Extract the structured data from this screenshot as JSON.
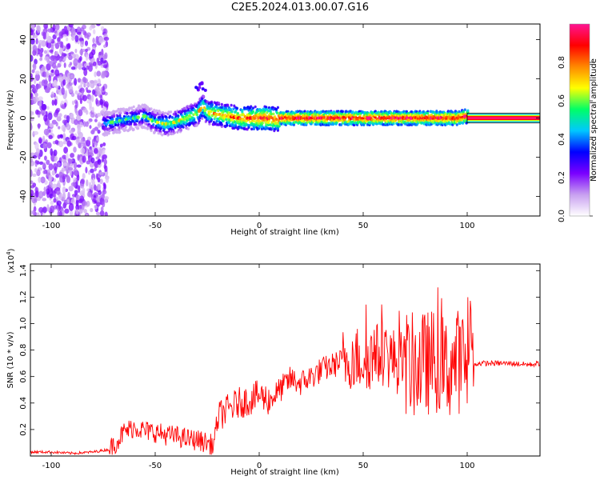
{
  "title": "C2E5.2024.013.00.07.G16",
  "chart_data": [
    {
      "type": "heatmap",
      "xlabel": "Height of straight line (km)",
      "ylabel": "Frequency (Hz)",
      "xlim": [
        -110,
        135
      ],
      "ylim": [
        -50,
        48
      ],
      "xticks": [
        -100,
        -50,
        0,
        50,
        100
      ],
      "yticks": [
        -40,
        -20,
        0,
        20,
        40
      ],
      "colorbar": {
        "label": "Normalized spectral amplitude",
        "range": [
          0,
          1
        ],
        "ticks": [
          "0.0",
          "0.2",
          "0.4",
          "0.6",
          "0.8"
        ],
        "tick_values": [
          0,
          0.2,
          0.4,
          0.6,
          0.8
        ],
        "colors": [
          "#ffffff",
          "#c8a0f0",
          "#7a00ff",
          "#0000ff",
          "#00c8ff",
          "#00ff66",
          "#ffff00",
          "#ff8800",
          "#ff0000",
          "#ff1493"
        ]
      },
      "ridge": {
        "x": [
          -75,
          -70,
          -65,
          -60,
          -55,
          -50,
          -45,
          -40,
          -35,
          -30,
          -27,
          -25,
          -20,
          -15,
          -10,
          -5,
          0,
          5,
          8,
          10,
          20,
          40,
          60,
          80,
          95,
          100,
          135
        ],
        "freq": [
          -3,
          -2,
          -1,
          0,
          1,
          -2,
          -3,
          -2,
          0,
          2,
          6,
          3,
          2,
          1,
          0,
          0,
          0,
          0,
          -1,
          0,
          0,
          0,
          0,
          0,
          0,
          1,
          0
        ],
        "amplitude": [
          0.45,
          0.5,
          0.5,
          0.5,
          0.5,
          0.55,
          0.6,
          0.6,
          0.65,
          0.65,
          0.7,
          0.7,
          0.75,
          0.75,
          0.8,
          0.8,
          0.85,
          0.85,
          0.8,
          0.9,
          0.9,
          0.9,
          0.9,
          0.9,
          0.9,
          0.9,
          0.9
        ]
      },
      "noise_region_x": [
        -110,
        -73
      ],
      "secondary_blob": {
        "x": -28,
        "freq": 16
      }
    },
    {
      "type": "line",
      "xlabel": "Height of straight line (km)",
      "ylabel": "SNR (10 * v/v)",
      "y_multiplier": "(x10",
      "y_multiplier_exp": "4",
      "y_multiplier_close": ")",
      "xlim": [
        -110,
        135
      ],
      "ylim": [
        0,
        1.45
      ],
      "xticks": [
        -100,
        -50,
        0,
        50,
        100
      ],
      "yticks": [
        0.2,
        0.4,
        0.6,
        0.8,
        1.0,
        1.2,
        1.4
      ],
      "ytick_labels": [
        "0.2",
        "0.4",
        "0.6",
        "0.8",
        "1.0",
        "1.2",
        "1.4"
      ],
      "color": "#ff0000",
      "series": [
        {
          "x": [
            -110,
            -100,
            -90,
            -80,
            -72,
            -68,
            -65,
            -60,
            -55,
            -50,
            -45,
            -40,
            -35,
            -30,
            -25,
            -22,
            -20,
            -18,
            -15,
            -10,
            -5,
            0,
            5,
            10,
            15,
            20,
            25,
            30,
            35,
            40,
            45,
            50,
            55,
            60,
            65,
            70,
            75,
            80,
            85,
            90,
            95,
            100,
            103,
            105,
            110,
            120,
            130,
            135
          ],
          "y": [
            0.03,
            0.03,
            0.02,
            0.03,
            0.05,
            0.12,
            0.18,
            0.22,
            0.19,
            0.18,
            0.16,
            0.15,
            0.13,
            0.12,
            0.1,
            0.08,
            0.28,
            0.32,
            0.35,
            0.4,
            0.42,
            0.46,
            0.42,
            0.5,
            0.58,
            0.55,
            0.6,
            0.65,
            0.68,
            0.72,
            0.75,
            0.73,
            0.75,
            0.78,
            0.72,
            0.7,
            0.68,
            0.7,
            0.72,
            0.65,
            0.72,
            0.7,
            0.68,
            0.7,
            0.7,
            0.7,
            0.69,
            0.7
          ]
        }
      ]
    }
  ]
}
